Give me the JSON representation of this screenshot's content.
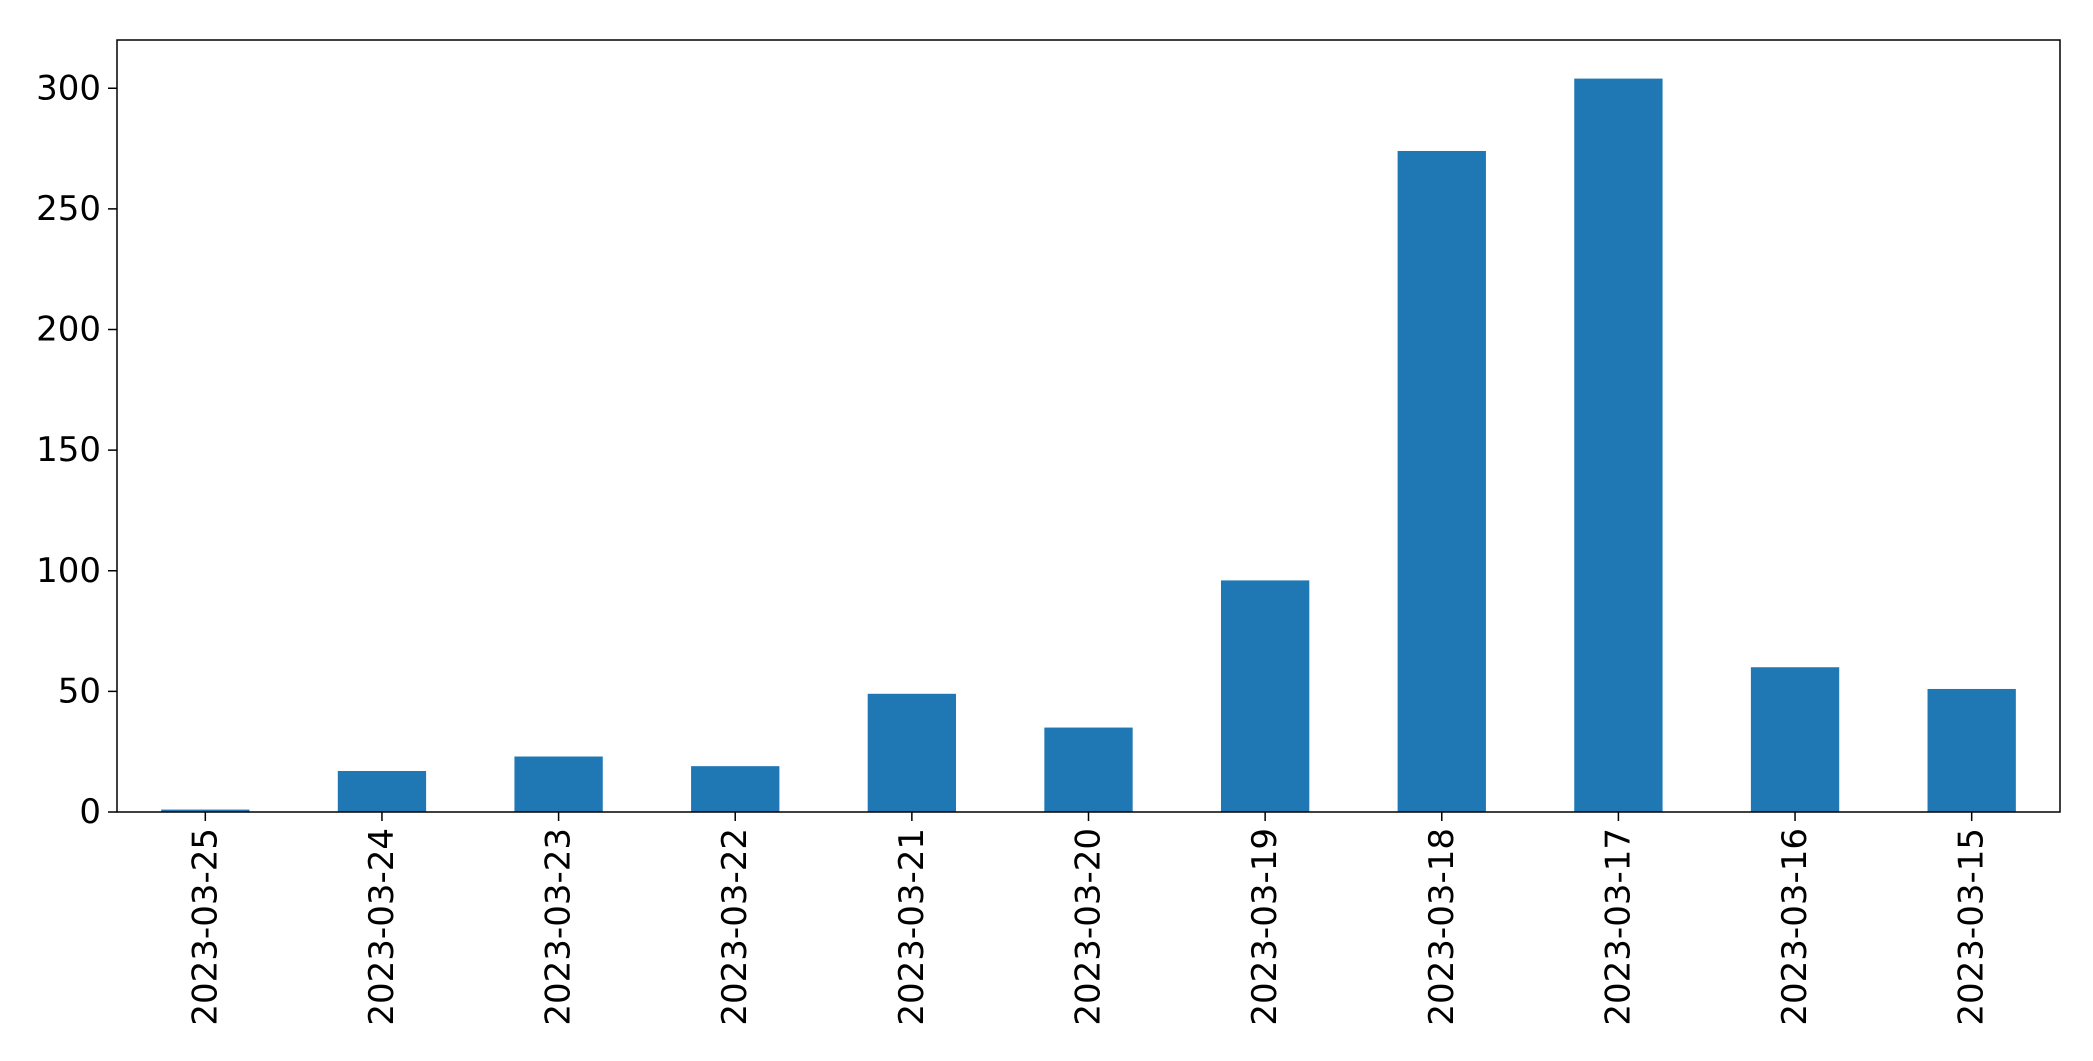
{
  "chart_data": {
    "type": "bar",
    "title": "",
    "xlabel": "",
    "ylabel": "",
    "categories": [
      "2023-03-25",
      "2023-03-24",
      "2023-03-23",
      "2023-03-22",
      "2023-03-21",
      "2023-03-20",
      "2023-03-19",
      "2023-03-18",
      "2023-03-17",
      "2023-03-16",
      "2023-03-15"
    ],
    "values": [
      1,
      17,
      23,
      19,
      49,
      35,
      96,
      274,
      304,
      60,
      51
    ],
    "ylim": [
      0,
      320
    ],
    "yticks": [
      0,
      50,
      100,
      150,
      200,
      250,
      300
    ],
    "bar_color": "#1f77b4",
    "grid": false,
    "legend": "none"
  }
}
